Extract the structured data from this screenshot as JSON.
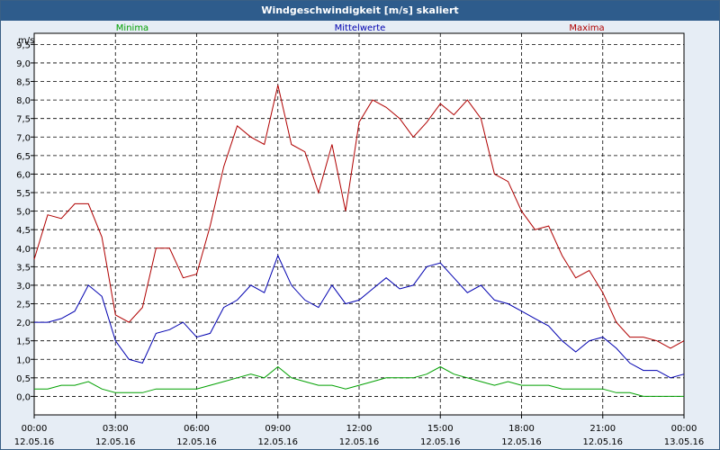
{
  "window": {
    "title": "Windgeschwindigkeit [m/s] skaliert"
  },
  "chart_data": {
    "type": "line",
    "title": "Windgeschwindigkeit [m/s] skaliert",
    "ylabel": "m/s",
    "xlabel": "",
    "ylim": [
      -0.5,
      9.8
    ],
    "yticks": [
      "0,0",
      "0,5",
      "1,0",
      "1,5",
      "2,0",
      "2,5",
      "3,0",
      "3,5",
      "4,0",
      "4,5",
      "5,0",
      "5,5",
      "6,0",
      "6,5",
      "7,0",
      "7,5",
      "8,0",
      "8,5",
      "9,0",
      "9,5"
    ],
    "yticks_values": [
      0,
      0.5,
      1,
      1.5,
      2,
      2.5,
      3,
      3.5,
      4,
      4.5,
      5,
      5.5,
      6,
      6.5,
      7,
      7.5,
      8,
      8.5,
      9,
      9.5
    ],
    "xlim": [
      0,
      24
    ],
    "xticks": [
      {
        "value": 0,
        "time": "00:00",
        "date": "12.05.16"
      },
      {
        "value": 3,
        "time": "03:00",
        "date": "12.05.16"
      },
      {
        "value": 6,
        "time": "06:00",
        "date": "12.05.16"
      },
      {
        "value": 9,
        "time": "09:00",
        "date": "12.05.16"
      },
      {
        "value": 12,
        "time": "12:00",
        "date": "12.05.16"
      },
      {
        "value": 15,
        "time": "15:00",
        "date": "12.05.16"
      },
      {
        "value": 18,
        "time": "18:00",
        "date": "12.05.16"
      },
      {
        "value": 21,
        "time": "21:00",
        "date": "12.05.16"
      },
      {
        "value": 24,
        "time": "00:00",
        "date": "13.05.16"
      }
    ],
    "grid": true,
    "series": [
      {
        "name": "Minima",
        "color": "#00a000",
        "x": [
          0,
          0.5,
          1,
          1.5,
          2,
          2.5,
          3,
          3.5,
          4,
          4.5,
          5,
          5.5,
          6,
          6.5,
          7,
          7.5,
          8,
          8.5,
          9,
          9.5,
          10,
          10.5,
          11,
          11.5,
          12,
          12.5,
          13,
          13.5,
          14,
          14.5,
          15,
          15.5,
          16,
          16.5,
          17,
          17.5,
          18,
          18.5,
          19,
          19.5,
          20,
          20.5,
          21,
          21.5,
          22,
          22.5,
          23,
          23.5,
          24
        ],
        "values": [
          0.2,
          0.2,
          0.3,
          0.3,
          0.4,
          0.2,
          0.1,
          0.1,
          0.1,
          0.2,
          0.2,
          0.2,
          0.2,
          0.3,
          0.4,
          0.5,
          0.6,
          0.5,
          0.8,
          0.5,
          0.4,
          0.3,
          0.3,
          0.2,
          0.3,
          0.4,
          0.5,
          0.5,
          0.5,
          0.6,
          0.8,
          0.6,
          0.5,
          0.4,
          0.3,
          0.4,
          0.3,
          0.3,
          0.3,
          0.2,
          0.2,
          0.2,
          0.2,
          0.1,
          0.1,
          0.0,
          0.0,
          0.0,
          0.0
        ]
      },
      {
        "name": "Mittelwerte",
        "color": "#0000b0",
        "x": [
          0,
          0.5,
          1,
          1.5,
          2,
          2.5,
          3,
          3.5,
          4,
          4.5,
          5,
          5.5,
          6,
          6.5,
          7,
          7.5,
          8,
          8.5,
          9,
          9.5,
          10,
          10.5,
          11,
          11.5,
          12,
          12.5,
          13,
          13.5,
          14,
          14.5,
          15,
          15.5,
          16,
          16.5,
          17,
          17.5,
          18,
          18.5,
          19,
          19.5,
          20,
          20.5,
          21,
          21.5,
          22,
          22.5,
          23,
          23.5,
          24
        ],
        "values": [
          2.0,
          2.0,
          2.1,
          2.3,
          3.0,
          2.7,
          1.5,
          1.0,
          0.9,
          1.7,
          1.8,
          2.0,
          1.6,
          1.7,
          2.4,
          2.6,
          3.0,
          2.8,
          3.8,
          3.0,
          2.6,
          2.4,
          3.0,
          2.5,
          2.6,
          2.9,
          3.2,
          2.9,
          3.0,
          3.5,
          3.6,
          3.2,
          2.8,
          3.0,
          2.6,
          2.5,
          2.3,
          2.1,
          1.9,
          1.5,
          1.2,
          1.5,
          1.6,
          1.3,
          0.9,
          0.7,
          0.7,
          0.5,
          0.6
        ]
      },
      {
        "name": "Maxima",
        "color": "#b00000",
        "x": [
          0,
          0.5,
          1,
          1.5,
          2,
          2.5,
          3,
          3.5,
          4,
          4.5,
          5,
          5.5,
          6,
          6.5,
          7,
          7.5,
          8,
          8.5,
          9,
          9.5,
          10,
          10.5,
          11,
          11.5,
          12,
          12.5,
          13,
          13.5,
          14,
          14.5,
          15,
          15.5,
          16,
          16.5,
          17,
          17.5,
          18,
          18.5,
          19,
          19.5,
          20,
          20.5,
          21,
          21.5,
          22,
          22.5,
          23,
          23.5,
          24
        ],
        "values": [
          3.7,
          4.9,
          4.8,
          5.2,
          5.2,
          4.3,
          2.2,
          2.0,
          2.4,
          4.0,
          4.0,
          3.2,
          3.3,
          4.6,
          6.2,
          7.3,
          7.0,
          6.8,
          8.4,
          6.8,
          6.6,
          5.5,
          6.8,
          5.0,
          7.4,
          8.0,
          7.8,
          7.5,
          7.0,
          7.4,
          7.9,
          7.6,
          8.0,
          7.5,
          6.0,
          5.8,
          5.0,
          4.5,
          4.6,
          3.8,
          3.2,
          3.4,
          2.8,
          2.0,
          1.6,
          1.6,
          1.5,
          1.3,
          1.5
        ]
      }
    ]
  }
}
